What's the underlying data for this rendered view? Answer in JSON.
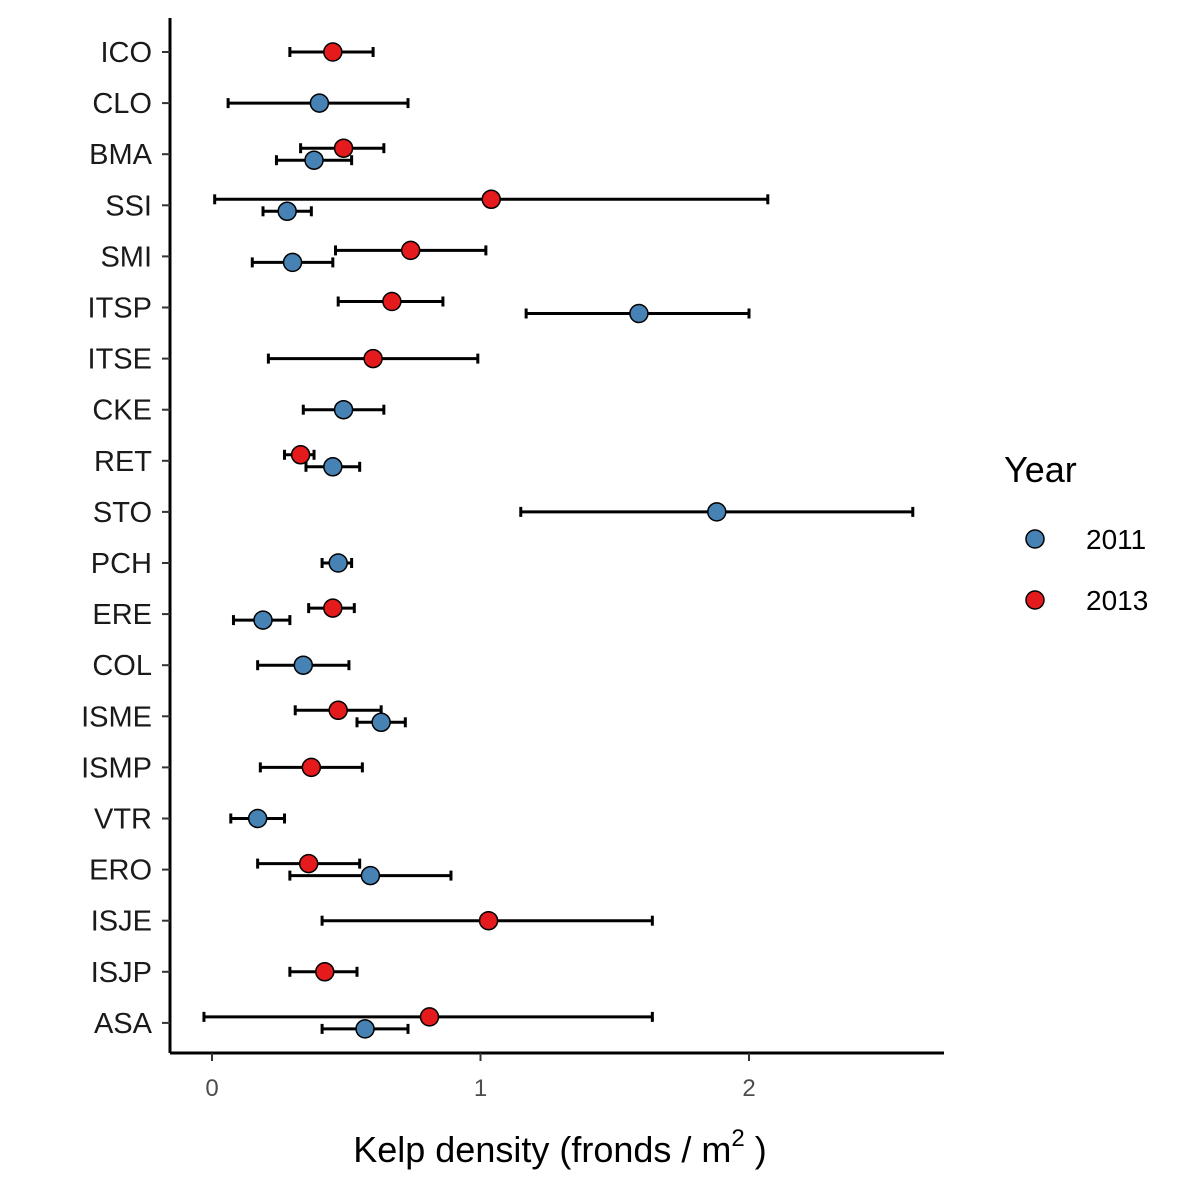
{
  "chart_data": {
    "type": "scatter",
    "title": "",
    "xlabel": "Kelp density (fronds /  m",
    "xlabel_sup": "2",
    "xlabel_end": " )",
    "ylabel": "",
    "xlim": [
      -0.15,
      2.7
    ],
    "xticks": [
      0,
      1,
      2
    ],
    "xtick_labels": [
      "0",
      "1",
      "2"
    ],
    "grid": false,
    "legend_position": "right",
    "legend_title": "Year",
    "categories": [
      "ICO",
      "CLO",
      "BMA",
      "SSI",
      "SMI",
      "ITSP",
      "ITSE",
      "CKE",
      "RET",
      "STO",
      "PCH",
      "ERE",
      "COL",
      "ISME",
      "ISMP",
      "VTR",
      "ERO",
      "ISJE",
      "ISJP",
      "ASA"
    ],
    "series": [
      {
        "name": "2011",
        "color": "#4682b4",
        "points": [
          {
            "site": "CLO",
            "mean": 0.4,
            "low": 0.06,
            "high": 0.73
          },
          {
            "site": "BMA",
            "mean": 0.38,
            "low": 0.24,
            "high": 0.52
          },
          {
            "site": "SSI",
            "mean": 0.28,
            "low": 0.19,
            "high": 0.37
          },
          {
            "site": "SMI",
            "mean": 0.3,
            "low": 0.15,
            "high": 0.45
          },
          {
            "site": "ITSP",
            "mean": 1.59,
            "low": 1.17,
            "high": 2.0
          },
          {
            "site": "CKE",
            "mean": 0.49,
            "low": 0.34,
            "high": 0.64
          },
          {
            "site": "RET",
            "mean": 0.45,
            "low": 0.35,
            "high": 0.55
          },
          {
            "site": "STO",
            "mean": 1.88,
            "low": 1.15,
            "high": 2.61
          },
          {
            "site": "PCH",
            "mean": 0.47,
            "low": 0.41,
            "high": 0.52
          },
          {
            "site": "ERE",
            "mean": 0.19,
            "low": 0.08,
            "high": 0.29
          },
          {
            "site": "COL",
            "mean": 0.34,
            "low": 0.17,
            "high": 0.51
          },
          {
            "site": "ISME",
            "mean": 0.63,
            "low": 0.54,
            "high": 0.72
          },
          {
            "site": "VTR",
            "mean": 0.17,
            "low": 0.07,
            "high": 0.27
          },
          {
            "site": "ERO",
            "mean": 0.59,
            "low": 0.29,
            "high": 0.89
          },
          {
            "site": "ASA",
            "mean": 0.57,
            "low": 0.41,
            "high": 0.73
          }
        ]
      },
      {
        "name": "2013",
        "color": "#e41a1c",
        "points": [
          {
            "site": "ICO",
            "mean": 0.45,
            "low": 0.29,
            "high": 0.6
          },
          {
            "site": "BMA",
            "mean": 0.49,
            "low": 0.33,
            "high": 0.64
          },
          {
            "site": "SSI",
            "mean": 1.04,
            "low": 0.01,
            "high": 2.07
          },
          {
            "site": "SMI",
            "mean": 0.74,
            "low": 0.46,
            "high": 1.02
          },
          {
            "site": "ITSP",
            "mean": 0.67,
            "low": 0.47,
            "high": 0.86
          },
          {
            "site": "ITSE",
            "mean": 0.6,
            "low": 0.21,
            "high": 0.99
          },
          {
            "site": "RET",
            "mean": 0.33,
            "low": 0.27,
            "high": 0.38
          },
          {
            "site": "ERE",
            "mean": 0.45,
            "low": 0.36,
            "high": 0.53
          },
          {
            "site": "ISME",
            "mean": 0.47,
            "low": 0.31,
            "high": 0.63
          },
          {
            "site": "ISMP",
            "mean": 0.37,
            "low": 0.18,
            "high": 0.56
          },
          {
            "site": "ERO",
            "mean": 0.36,
            "low": 0.17,
            "high": 0.55
          },
          {
            "site": "ISJE",
            "mean": 1.03,
            "low": 0.41,
            "high": 1.64
          },
          {
            "site": "ISJP",
            "mean": 0.42,
            "low": 0.29,
            "high": 0.54
          },
          {
            "site": "ASA",
            "mean": 0.81,
            "low": -0.03,
            "high": 1.64
          }
        ]
      }
    ]
  }
}
